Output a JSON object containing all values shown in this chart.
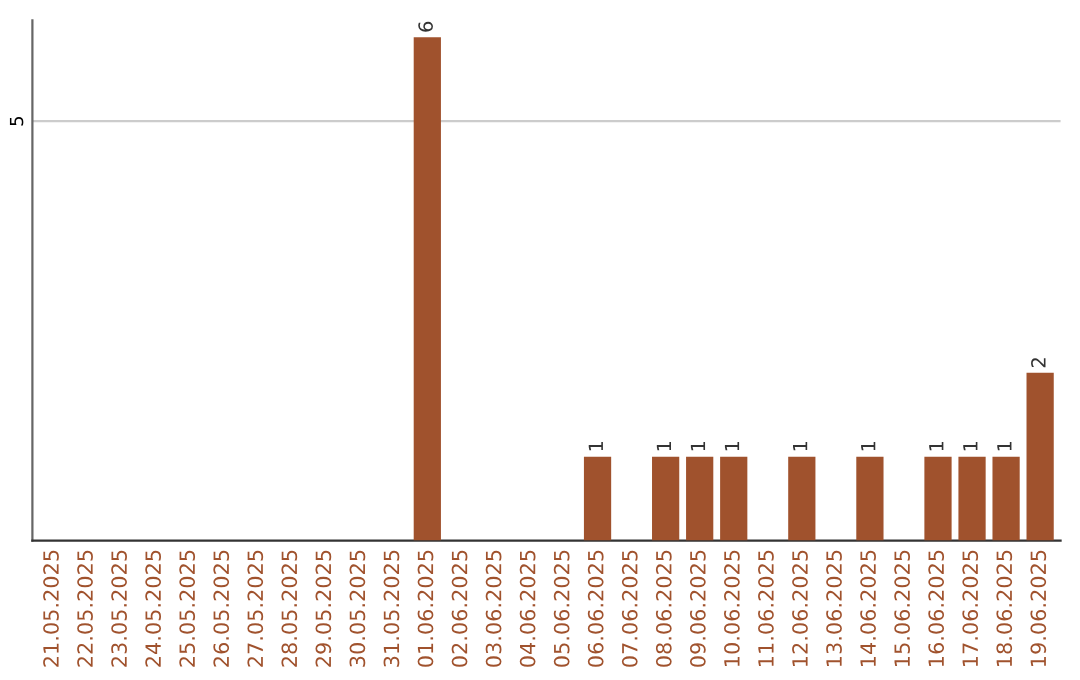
{
  "chart_data": {
    "type": "bar",
    "categories": [
      "21.05.2025",
      "22.05.2025",
      "23.05.2025",
      "24.05.2025",
      "25.05.2025",
      "26.05.2025",
      "27.05.2025",
      "28.05.2025",
      "29.05.2025",
      "30.05.2025",
      "31.05.2025",
      "01.06.2025",
      "02.06.2025",
      "03.06.2025",
      "04.06.2025",
      "05.06.2025",
      "06.06.2025",
      "07.06.2025",
      "08.06.2025",
      "09.06.2025",
      "10.06.2025",
      "11.06.2025",
      "12.06.2025",
      "13.06.2025",
      "14.06.2025",
      "15.06.2025",
      "16.06.2025",
      "17.06.2025",
      "18.06.2025",
      "19.06.2025"
    ],
    "values": [
      0,
      0,
      0,
      0,
      0,
      0,
      0,
      0,
      0,
      0,
      0,
      6,
      0,
      0,
      0,
      0,
      1,
      0,
      1,
      1,
      1,
      0,
      1,
      0,
      1,
      0,
      1,
      1,
      1,
      2
    ],
    "value_labels": [
      null,
      null,
      null,
      null,
      null,
      null,
      null,
      null,
      null,
      null,
      null,
      "6",
      null,
      null,
      null,
      null,
      "1",
      null,
      "1",
      "1",
      "1",
      null,
      "1",
      null,
      "1",
      null,
      "1",
      "1",
      "1",
      "2"
    ],
    "color": "#a0522d",
    "ylim": [
      0,
      6.2
    ],
    "yticks": [
      5
    ],
    "grid": "y"
  }
}
